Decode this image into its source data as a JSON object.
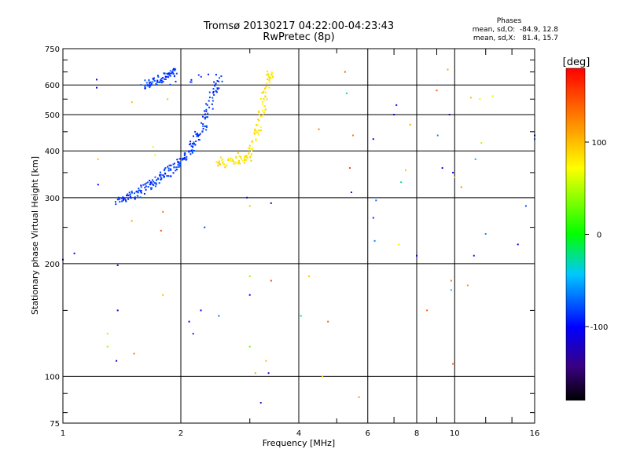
{
  "header": {
    "title": "Tromsø 20130217 04:22:00-04:23:43",
    "subtitle": "RwPretec (8p)",
    "phases_title": "Phases",
    "phases_line1": "mean, sd,O:  -84.9, 12.8",
    "phases_line2": "mean, sd,X:   81.4, 15.7"
  },
  "chart_data": {
    "type": "scatter",
    "xlabel": "Frequency [MHz]",
    "ylabel": "Stationary phase Virtual Height [km]",
    "xscale": "log",
    "yscale": "log",
    "xlim": [
      1,
      16
    ],
    "ylim": [
      75,
      750
    ],
    "x_ticks": [
      1,
      2,
      4,
      6,
      8,
      10,
      16
    ],
    "x_tick_labels": [
      "1",
      "2",
      "4",
      "6",
      "8",
      "10",
      "16"
    ],
    "y_ticks": [
      75,
      100,
      200,
      300,
      400,
      500,
      600,
      750
    ],
    "y_tick_labels": [
      "75",
      "100",
      "200",
      "300",
      "400",
      "500",
      "600",
      "750"
    ],
    "grid": true,
    "colorbar": {
      "label": "[deg]",
      "range": [
        -180,
        180
      ],
      "ticks": [
        100,
        0,
        -100
      ],
      "tick_labels": [
        "100",
        "0",
        "-100"
      ]
    },
    "series": [
      {
        "mode": "O",
        "mean_phase": -84.9,
        "sd_phase": 12.8,
        "description_points": [
          [
            1.35,
            295
          ],
          [
            1.4,
            297
          ],
          [
            1.45,
            300
          ],
          [
            1.5,
            305
          ],
          [
            1.55,
            310
          ],
          [
            1.6,
            318
          ],
          [
            1.65,
            325
          ],
          [
            1.7,
            330
          ],
          [
            1.75,
            340
          ],
          [
            1.8,
            345
          ],
          [
            1.85,
            352
          ],
          [
            1.9,
            362
          ],
          [
            1.95,
            370
          ],
          [
            2.0,
            380
          ],
          [
            2.05,
            392
          ],
          [
            2.1,
            405
          ],
          [
            2.15,
            420
          ],
          [
            2.2,
            440
          ],
          [
            2.25,
            460
          ],
          [
            2.3,
            490
          ],
          [
            2.35,
            520
          ],
          [
            2.4,
            560
          ],
          [
            2.45,
            600
          ],
          [
            2.5,
            640
          ],
          [
            1.6,
            600
          ],
          [
            1.65,
            610
          ],
          [
            1.7,
            615
          ],
          [
            1.75,
            620
          ],
          [
            1.8,
            630
          ],
          [
            1.85,
            640
          ],
          [
            1.9,
            650
          ]
        ]
      },
      {
        "mode": "X",
        "mean_phase": 81.4,
        "sd_phase": 15.7,
        "description_points": [
          [
            2.45,
            380
          ],
          [
            2.55,
            372
          ],
          [
            2.65,
            375
          ],
          [
            2.75,
            380
          ],
          [
            2.85,
            380
          ],
          [
            2.95,
            385
          ],
          [
            3.0,
            400
          ],
          [
            3.05,
            420
          ],
          [
            3.1,
            450
          ],
          [
            3.15,
            480
          ],
          [
            3.2,
            520
          ],
          [
            3.25,
            560
          ],
          [
            3.3,
            600
          ],
          [
            3.35,
            640
          ]
        ]
      }
    ],
    "scattered_points": [
      [
        1.0,
        205,
        -100
      ],
      [
        1.07,
        213,
        -100
      ],
      [
        1.22,
        620,
        -100
      ],
      [
        1.22,
        590,
        -110
      ],
      [
        1.23,
        325,
        -100
      ],
      [
        1.23,
        380,
        100
      ],
      [
        1.3,
        130,
        50
      ],
      [
        1.3,
        120,
        40
      ],
      [
        1.37,
        110,
        -110
      ],
      [
        1.38,
        150,
        -110
      ],
      [
        1.38,
        198,
        -100
      ],
      [
        1.5,
        540,
        100
      ],
      [
        1.5,
        260,
        110
      ],
      [
        1.52,
        115,
        130
      ],
      [
        1.7,
        410,
        60
      ],
      [
        1.72,
        390,
        80
      ],
      [
        1.78,
        245,
        150
      ],
      [
        1.8,
        275,
        130
      ],
      [
        1.8,
        165,
        100
      ],
      [
        1.85,
        550,
        40
      ],
      [
        2.1,
        140,
        -100
      ],
      [
        2.15,
        130,
        -90
      ],
      [
        2.25,
        150,
        -100
      ],
      [
        2.3,
        250,
        -80
      ],
      [
        2.5,
        145,
        -70
      ],
      [
        2.8,
        395,
        100
      ],
      [
        2.95,
        300,
        -110
      ],
      [
        3.0,
        285,
        100
      ],
      [
        3.0,
        185,
        40
      ],
      [
        3.0,
        165,
        -100
      ],
      [
        3.0,
        120,
        30
      ],
      [
        3.1,
        102,
        110
      ],
      [
        3.2,
        85,
        -120
      ],
      [
        3.3,
        110,
        100
      ],
      [
        3.35,
        102,
        -120
      ],
      [
        3.4,
        180,
        150
      ],
      [
        3.4,
        290,
        -110
      ],
      [
        4.05,
        145,
        -30
      ],
      [
        4.25,
        185,
        100
      ],
      [
        4.5,
        457,
        130
      ],
      [
        4.6,
        100,
        90
      ],
      [
        4.75,
        140,
        140
      ],
      [
        5.25,
        650,
        140
      ],
      [
        5.3,
        570,
        -30
      ],
      [
        5.4,
        360,
        150
      ],
      [
        5.45,
        310,
        -100
      ],
      [
        5.5,
        440,
        130
      ],
      [
        5.7,
        88,
        110
      ],
      [
        6.2,
        430,
        -120
      ],
      [
        6.2,
        265,
        -90
      ],
      [
        6.25,
        230,
        -60
      ],
      [
        6.3,
        295,
        -70
      ],
      [
        7.0,
        500,
        -120
      ],
      [
        7.1,
        530,
        -100
      ],
      [
        7.2,
        225,
        80
      ],
      [
        7.3,
        330,
        -30
      ],
      [
        7.5,
        355,
        100
      ],
      [
        7.7,
        470,
        110
      ],
      [
        8.0,
        210,
        -100
      ],
      [
        8.5,
        150,
        140
      ],
      [
        9.0,
        580,
        140
      ],
      [
        9.05,
        440,
        -60
      ],
      [
        9.3,
        360,
        -120
      ],
      [
        9.6,
        660,
        110
      ],
      [
        9.7,
        500,
        -120
      ],
      [
        9.8,
        180,
        130
      ],
      [
        9.8,
        170,
        -40
      ],
      [
        9.9,
        108,
        140
      ],
      [
        9.9,
        350,
        -110
      ],
      [
        10.0,
        340,
        100
      ],
      [
        10.4,
        320,
        120
      ],
      [
        10.8,
        175,
        120
      ],
      [
        11.0,
        555,
        100
      ],
      [
        11.2,
        210,
        -90
      ],
      [
        11.3,
        380,
        -50
      ],
      [
        11.6,
        550,
        80
      ],
      [
        11.7,
        420,
        50
      ],
      [
        12.0,
        240,
        -60
      ],
      [
        12.5,
        560,
        60
      ],
      [
        14.5,
        225,
        -110
      ],
      [
        15.2,
        285,
        -80
      ],
      [
        16.0,
        430,
        -70
      ],
      [
        16.0,
        440,
        -100
      ]
    ]
  }
}
